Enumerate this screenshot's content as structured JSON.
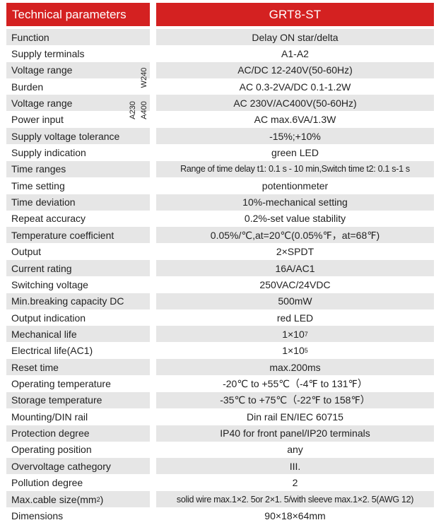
{
  "header": {
    "left_title": "Technical parameters",
    "right_title": "GRT8-ST"
  },
  "side_tags": {
    "w240": "W240",
    "a230": "A230",
    "a400": "A400"
  },
  "rows": [
    {
      "label": "Function",
      "value": "Delay ON star/delta"
    },
    {
      "label": "Supply terminals",
      "value": "A1-A2"
    },
    {
      "label": "Voltage range",
      "value": "AC/DC 12-240V(50-60Hz)"
    },
    {
      "label": "Burden",
      "value": "AC 0.3-2VA/DC 0.1-1.2W"
    },
    {
      "label": "Voltage range",
      "value": "AC 230V/AC400V(50-60Hz)"
    },
    {
      "label": "Power input",
      "value": "AC max.6VA/1.3W"
    },
    {
      "label": "Supply voltage tolerance",
      "value": "-15%;+10%"
    },
    {
      "label": "Supply indication",
      "value": "green LED"
    },
    {
      "label": "Time ranges",
      "value": "Range of time delay  t1: 0.1 s - 10 min,Switch time  t2: 0.1 s-1 s"
    },
    {
      "label": "Time setting",
      "value": "potentionmeter"
    },
    {
      "label": "Time deviation",
      "value": "10%-mechanical setting"
    },
    {
      "label": "Repeat accuracy",
      "value": "0.2%-set value stability"
    },
    {
      "label": "Temperature coefficient",
      "value": "0.05%/℃,at=20℃(0.05%℉，at=68℉)"
    },
    {
      "label": "Output",
      "value": "2×SPDT"
    },
    {
      "label": "Current rating",
      "value": "16A/AC1"
    },
    {
      "label": "Switching voltage",
      "value": "250VAC/24VDC"
    },
    {
      "label": "Min.breaking capacity DC",
      "value": "500mW"
    },
    {
      "label": "Output indication",
      "value": "red LED"
    },
    {
      "label": "Mechanical life",
      "value": "1×10",
      "sup": "7"
    },
    {
      "label": "Electrical life(AC1)",
      "value": "1×10",
      "sup": "5"
    },
    {
      "label": "Reset time",
      "value": "max.200ms"
    },
    {
      "label": "Operating temperature",
      "value": "-20℃ to +55℃（-4℉ to 131℉）"
    },
    {
      "label": "Storage temperature",
      "value": "-35℃ to +75℃（-22℉ to 158℉）"
    },
    {
      "label": "Mounting/DIN rail",
      "value": "Din rail EN/IEC 60715"
    },
    {
      "label": "Protection degree",
      "value": "IP40 for front panel/IP20 terminals"
    },
    {
      "label": "Operating position",
      "value": "any"
    },
    {
      "label": "Overvoltage cathegory",
      "value": "III."
    },
    {
      "label": "Pollution degree",
      "value": "2"
    },
    {
      "label": "Max.cable size(mm",
      "label_sup": "2",
      "label_tail": ")",
      "value": "solid wire max.1×2. 5or 2×1. 5/with sleeve max.1×2. 5(AWG 12)"
    },
    {
      "label": "Dimensions",
      "value": "90×18×64mm"
    }
  ]
}
